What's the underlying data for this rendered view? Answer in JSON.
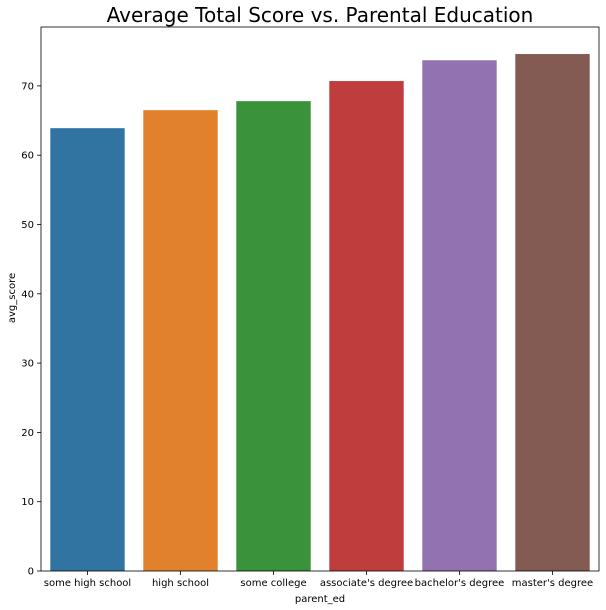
{
  "chart_data": {
    "type": "bar",
    "title": "Average Total Score vs. Parental Education",
    "xlabel": "parent_ed",
    "ylabel": "avg_score",
    "categories": [
      "some high school",
      "high school",
      "some college",
      "associate's degree",
      "bachelor's degree",
      "master's degree"
    ],
    "values": [
      63.9,
      66.5,
      67.8,
      70.7,
      73.7,
      74.6
    ],
    "colors": [
      "#3274a1",
      "#e1812c",
      "#3a923a",
      "#c03d3e",
      "#9372b2",
      "#845b53"
    ],
    "ylim": [
      0,
      78.5
    ],
    "yticks": [
      0,
      10,
      20,
      30,
      40,
      50,
      60,
      70
    ],
    "grid": false,
    "legend": "none"
  }
}
